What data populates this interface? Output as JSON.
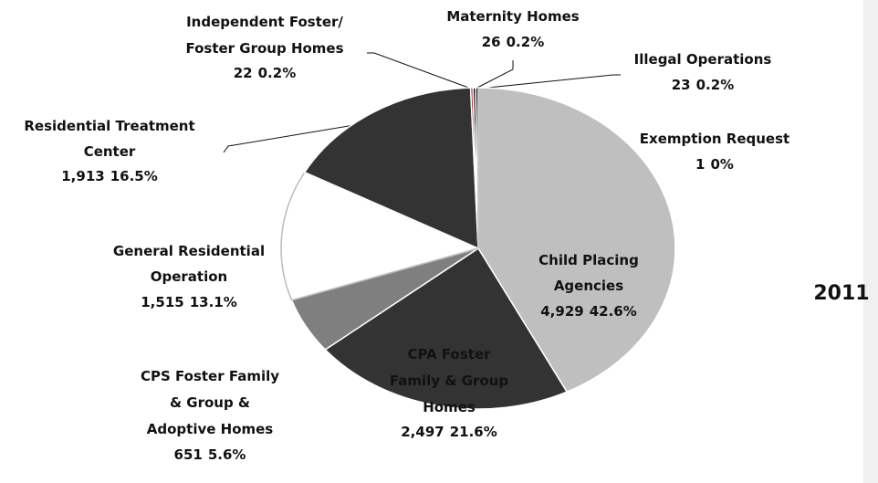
{
  "chart_data": {
    "type": "pie",
    "categories": [
      "Child Placing Agencies",
      "CPA Foster Family & Group Homes",
      "CPS Foster Family & Group & Adoptive Homes",
      "General Residential Operation",
      "Residential Treatment Center",
      "Independent Foster/ Foster Group Homes",
      "Maternity Homes",
      "Illegal Operations",
      "Exemption Request"
    ],
    "values": [
      4929,
      2497,
      651,
      1515,
      1913,
      22,
      26,
      23,
      1
    ],
    "value_labels": [
      "4,929",
      "2,497",
      "651",
      "1,515",
      "1,913",
      "22",
      "26",
      "23",
      "1"
    ],
    "shares": [
      "42.6%",
      "21.6%",
      "5.6%",
      "13.1%",
      "16.5%",
      "0.2%",
      "0.2%",
      "0.2%",
      "0%"
    ],
    "colors": [
      "#bfbfbf",
      "#333333",
      "#7f7f7f",
      "#ffffff",
      "#333333",
      "#8b1a1a",
      "#111111",
      "#111111",
      "#ffffff"
    ],
    "annotation": "2011"
  }
}
